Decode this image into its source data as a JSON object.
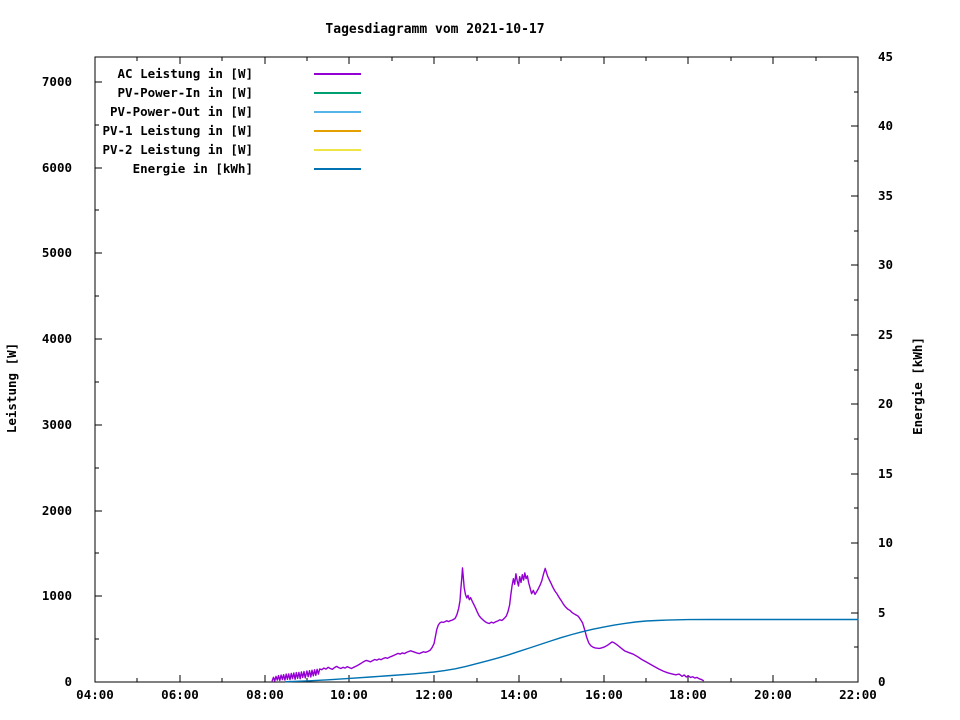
{
  "window": {
    "background": "#ffffff",
    "axis_color": "#000000"
  },
  "chart_data": {
    "type": "line",
    "title": "Tagesdiagramm vom 2021-10-17",
    "legend_position": "top-left-inside",
    "grid": false,
    "axes": {
      "x": {
        "min_hours": 4,
        "max_hours": 22,
        "major_ticks": [
          {
            "value": 4,
            "label": "04:00"
          },
          {
            "value": 6,
            "label": "06:00"
          },
          {
            "value": 8,
            "label": "08:00"
          },
          {
            "value": 10,
            "label": "10:00"
          },
          {
            "value": 12,
            "label": "12:00"
          },
          {
            "value": 14,
            "label": "14:00"
          },
          {
            "value": 16,
            "label": "16:00"
          },
          {
            "value": 18,
            "label": "18:00"
          },
          {
            "value": 20,
            "label": "20:00"
          },
          {
            "value": 22,
            "label": "22:00"
          }
        ],
        "minor_ticks": [
          5,
          7,
          9,
          11,
          13,
          15,
          17,
          19,
          21
        ]
      },
      "y_left": {
        "label": "Leistung [W]",
        "min": 0,
        "scale_max": 7290,
        "major_ticks": [
          {
            "value": 0,
            "label": "0"
          },
          {
            "value": 1000,
            "label": "1000"
          },
          {
            "value": 2000,
            "label": "2000"
          },
          {
            "value": 3000,
            "label": "3000"
          },
          {
            "value": 4000,
            "label": "4000"
          },
          {
            "value": 5000,
            "label": "5000"
          },
          {
            "value": 6000,
            "label": "6000"
          },
          {
            "value": 7000,
            "label": "7000"
          }
        ],
        "minor_ticks": [
          500,
          1500,
          2500,
          3500,
          4500,
          5500,
          6500
        ]
      },
      "y_right": {
        "label": "Energie [kWh]",
        "min": 0,
        "scale_max": 45,
        "major_ticks": [
          {
            "value": 0,
            "label": "0"
          },
          {
            "value": 5,
            "label": "5"
          },
          {
            "value": 10,
            "label": "10"
          },
          {
            "value": 15,
            "label": "15"
          },
          {
            "value": 20,
            "label": "20"
          },
          {
            "value": 25,
            "label": "25"
          },
          {
            "value": 30,
            "label": "30"
          },
          {
            "value": 35,
            "label": "35"
          },
          {
            "value": 40,
            "label": "40"
          },
          {
            "value": 45,
            "label": "45"
          }
        ],
        "minor_ticks": [
          2.5,
          7.5,
          12.5,
          17.5,
          22.5,
          27.5,
          32.5,
          37.5,
          42.5
        ]
      }
    },
    "series": [
      {
        "id": "ac-leistung",
        "name": "AC Leistung in [W]",
        "color": "#9400d3",
        "axis": "left",
        "points": [
          [
            8.18,
            15
          ],
          [
            8.21,
            55
          ],
          [
            8.24,
            12
          ],
          [
            8.27,
            65
          ],
          [
            8.3,
            22
          ],
          [
            8.33,
            75
          ],
          [
            8.36,
            18
          ],
          [
            8.39,
            80
          ],
          [
            8.42,
            28
          ],
          [
            8.45,
            85
          ],
          [
            8.48,
            22
          ],
          [
            8.51,
            92
          ],
          [
            8.54,
            32
          ],
          [
            8.57,
            95
          ],
          [
            8.6,
            28
          ],
          [
            8.63,
            100
          ],
          [
            8.66,
            38
          ],
          [
            8.69,
            105
          ],
          [
            8.72,
            32
          ],
          [
            8.75,
            110
          ],
          [
            8.78,
            42
          ],
          [
            8.81,
            112
          ],
          [
            8.84,
            38
          ],
          [
            8.87,
            118
          ],
          [
            8.9,
            52
          ],
          [
            8.93,
            122
          ],
          [
            8.96,
            48
          ],
          [
            9.0,
            128
          ],
          [
            9.03,
            62
          ],
          [
            9.06,
            132
          ],
          [
            9.09,
            58
          ],
          [
            9.12,
            138
          ],
          [
            9.15,
            72
          ],
          [
            9.18,
            142
          ],
          [
            9.21,
            78
          ],
          [
            9.24,
            148
          ],
          [
            9.27,
            92
          ],
          [
            9.3,
            152
          ],
          [
            9.35,
            144
          ],
          [
            9.4,
            162
          ],
          [
            9.45,
            150
          ],
          [
            9.5,
            172
          ],
          [
            9.55,
            158
          ],
          [
            9.6,
            148
          ],
          [
            9.65,
            168
          ],
          [
            9.7,
            182
          ],
          [
            9.75,
            168
          ],
          [
            9.8,
            158
          ],
          [
            9.85,
            172
          ],
          [
            9.9,
            162
          ],
          [
            9.95,
            178
          ],
          [
            10.0,
            168
          ],
          [
            10.05,
            158
          ],
          [
            10.1,
            172
          ],
          [
            10.15,
            182
          ],
          [
            10.2,
            195
          ],
          [
            10.25,
            210
          ],
          [
            10.3,
            225
          ],
          [
            10.35,
            240
          ],
          [
            10.4,
            252
          ],
          [
            10.45,
            244
          ],
          [
            10.5,
            236
          ],
          [
            10.55,
            250
          ],
          [
            10.6,
            262
          ],
          [
            10.65,
            254
          ],
          [
            10.7,
            268
          ],
          [
            10.75,
            260
          ],
          [
            10.8,
            274
          ],
          [
            10.85,
            284
          ],
          [
            10.9,
            276
          ],
          [
            10.95,
            290
          ],
          [
            11.0,
            300
          ],
          [
            11.05,
            310
          ],
          [
            11.1,
            322
          ],
          [
            11.15,
            334
          ],
          [
            11.2,
            326
          ],
          [
            11.25,
            340
          ],
          [
            11.3,
            331
          ],
          [
            11.35,
            345
          ],
          [
            11.4,
            356
          ],
          [
            11.45,
            364
          ],
          [
            11.5,
            355
          ],
          [
            11.55,
            346
          ],
          [
            11.6,
            337
          ],
          [
            11.65,
            331
          ],
          [
            11.7,
            342
          ],
          [
            11.75,
            352
          ],
          [
            11.8,
            346
          ],
          [
            11.85,
            356
          ],
          [
            11.9,
            368
          ],
          [
            11.95,
            400
          ],
          [
            12.0,
            450
          ],
          [
            12.03,
            530
          ],
          [
            12.06,
            610
          ],
          [
            12.1,
            665
          ],
          [
            12.14,
            690
          ],
          [
            12.18,
            700
          ],
          [
            12.22,
            695
          ],
          [
            12.26,
            705
          ],
          [
            12.3,
            715
          ],
          [
            12.34,
            705
          ],
          [
            12.38,
            715
          ],
          [
            12.42,
            720
          ],
          [
            12.46,
            730
          ],
          [
            12.5,
            745
          ],
          [
            12.54,
            790
          ],
          [
            12.58,
            860
          ],
          [
            12.61,
            950
          ],
          [
            12.63,
            1080
          ],
          [
            12.65,
            1200
          ],
          [
            12.67,
            1330
          ],
          [
            12.69,
            1210
          ],
          [
            12.71,
            1100
          ],
          [
            12.74,
            1020
          ],
          [
            12.77,
            980
          ],
          [
            12.8,
            1010
          ],
          [
            12.83,
            960
          ],
          [
            12.86,
            985
          ],
          [
            12.9,
            940
          ],
          [
            12.94,
            900
          ],
          [
            12.98,
            860
          ],
          [
            13.02,
            815
          ],
          [
            13.06,
            775
          ],
          [
            13.1,
            750
          ],
          [
            13.15,
            725
          ],
          [
            13.2,
            705
          ],
          [
            13.25,
            690
          ],
          [
            13.3,
            682
          ],
          [
            13.35,
            698
          ],
          [
            13.4,
            688
          ],
          [
            13.45,
            702
          ],
          [
            13.5,
            712
          ],
          [
            13.55,
            725
          ],
          [
            13.6,
            718
          ],
          [
            13.65,
            740
          ],
          [
            13.7,
            768
          ],
          [
            13.74,
            818
          ],
          [
            13.78,
            898
          ],
          [
            13.81,
            1015
          ],
          [
            13.84,
            1125
          ],
          [
            13.87,
            1205
          ],
          [
            13.9,
            1140
          ],
          [
            13.93,
            1262
          ],
          [
            13.96,
            1180
          ],
          [
            13.99,
            1120
          ],
          [
            14.02,
            1228
          ],
          [
            14.05,
            1160
          ],
          [
            14.08,
            1252
          ],
          [
            14.11,
            1188
          ],
          [
            14.14,
            1272
          ],
          [
            14.17,
            1205
          ],
          [
            14.2,
            1238
          ],
          [
            14.23,
            1160
          ],
          [
            14.26,
            1105
          ],
          [
            14.3,
            1030
          ],
          [
            14.34,
            1068
          ],
          [
            14.38,
            1022
          ],
          [
            14.42,
            1055
          ],
          [
            14.46,
            1090
          ],
          [
            14.5,
            1130
          ],
          [
            14.54,
            1180
          ],
          [
            14.58,
            1258
          ],
          [
            14.62,
            1325
          ],
          [
            14.65,
            1280
          ],
          [
            14.68,
            1232
          ],
          [
            14.72,
            1190
          ],
          [
            14.76,
            1150
          ],
          [
            14.8,
            1106
          ],
          [
            14.85,
            1062
          ],
          [
            14.9,
            1028
          ],
          [
            14.95,
            985
          ],
          [
            15.0,
            948
          ],
          [
            15.05,
            908
          ],
          [
            15.1,
            876
          ],
          [
            15.15,
            852
          ],
          [
            15.2,
            836
          ],
          [
            15.25,
            812
          ],
          [
            15.3,
            796
          ],
          [
            15.35,
            782
          ],
          [
            15.4,
            768
          ],
          [
            15.45,
            730
          ],
          [
            15.5,
            692
          ],
          [
            15.55,
            612
          ],
          [
            15.6,
            520
          ],
          [
            15.65,
            455
          ],
          [
            15.7,
            422
          ],
          [
            15.75,
            406
          ],
          [
            15.8,
            398
          ],
          [
            15.85,
            394
          ],
          [
            15.9,
            392
          ],
          [
            15.95,
            398
          ],
          [
            16.0,
            406
          ],
          [
            16.05,
            418
          ],
          [
            16.1,
            432
          ],
          [
            16.15,
            450
          ],
          [
            16.2,
            468
          ],
          [
            16.25,
            456
          ],
          [
            16.3,
            440
          ],
          [
            16.35,
            420
          ],
          [
            16.4,
            400
          ],
          [
            16.45,
            380
          ],
          [
            16.5,
            362
          ],
          [
            16.6,
            342
          ],
          [
            16.7,
            324
          ],
          [
            16.8,
            295
          ],
          [
            16.9,
            262
          ],
          [
            17.0,
            234
          ],
          [
            17.1,
            208
          ],
          [
            17.2,
            180
          ],
          [
            17.3,
            152
          ],
          [
            17.4,
            128
          ],
          [
            17.5,
            108
          ],
          [
            17.6,
            96
          ],
          [
            17.7,
            84
          ],
          [
            17.78,
            92
          ],
          [
            17.85,
            66
          ],
          [
            17.9,
            82
          ],
          [
            17.95,
            58
          ],
          [
            18.0,
            72
          ],
          [
            18.05,
            52
          ],
          [
            18.1,
            62
          ],
          [
            18.15,
            46
          ],
          [
            18.2,
            54
          ],
          [
            18.25,
            38
          ],
          [
            18.3,
            30
          ],
          [
            18.35,
            16
          ]
        ]
      },
      {
        "id": "pv-power-in",
        "name": "PV-Power-In in [W]",
        "color": "#009e73",
        "axis": "left",
        "points": []
      },
      {
        "id": "pv-power-out",
        "name": "PV-Power-Out in [W]",
        "color": "#56b4e9",
        "axis": "left",
        "points": []
      },
      {
        "id": "pv-1-leistung",
        "name": "PV-1 Leistung in [W]",
        "color": "#e69f00",
        "axis": "left",
        "points": []
      },
      {
        "id": "pv-2-leistung",
        "name": "PV-2 Leistung in [W]",
        "color": "#f0e442",
        "axis": "left",
        "points": []
      },
      {
        "id": "energie",
        "name": "Energie in [kWh]",
        "color": "#0072b2",
        "axis": "right",
        "points": [
          [
            8.5,
            0.02
          ],
          [
            9.0,
            0.08
          ],
          [
            9.5,
            0.16
          ],
          [
            10.0,
            0.26
          ],
          [
            10.5,
            0.36
          ],
          [
            11.0,
            0.47
          ],
          [
            11.5,
            0.58
          ],
          [
            12.0,
            0.72
          ],
          [
            12.25,
            0.82
          ],
          [
            12.5,
            0.95
          ],
          [
            12.75,
            1.12
          ],
          [
            13.0,
            1.32
          ],
          [
            13.25,
            1.52
          ],
          [
            13.5,
            1.72
          ],
          [
            13.75,
            1.95
          ],
          [
            14.0,
            2.2
          ],
          [
            14.25,
            2.45
          ],
          [
            14.5,
            2.7
          ],
          [
            14.75,
            2.95
          ],
          [
            15.0,
            3.2
          ],
          [
            15.25,
            3.42
          ],
          [
            15.5,
            3.62
          ],
          [
            15.75,
            3.8
          ],
          [
            16.0,
            3.95
          ],
          [
            16.25,
            4.1
          ],
          [
            16.5,
            4.22
          ],
          [
            16.75,
            4.32
          ],
          [
            17.0,
            4.39
          ],
          [
            17.25,
            4.43
          ],
          [
            17.5,
            4.46
          ],
          [
            17.75,
            4.48
          ],
          [
            18.0,
            4.49
          ],
          [
            18.5,
            4.5
          ],
          [
            19.5,
            4.5
          ],
          [
            21.0,
            4.5
          ],
          [
            22.0,
            4.5
          ]
        ]
      }
    ]
  }
}
